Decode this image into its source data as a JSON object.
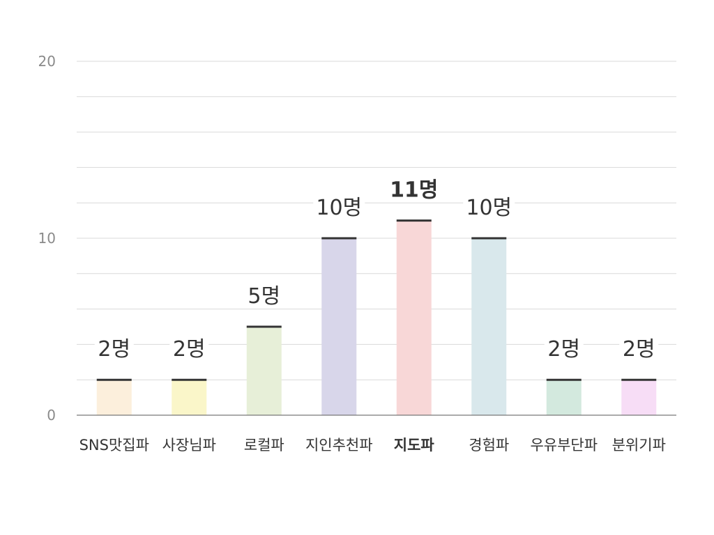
{
  "chart_data": {
    "type": "bar",
    "categories": [
      "SNS맛집파",
      "사장님파",
      "로컬파",
      "지인추천파",
      "지도파",
      "경험파",
      "우유부단파",
      "분위기파"
    ],
    "values": [
      2,
      2,
      5,
      10,
      11,
      10,
      2,
      2
    ],
    "value_labels": [
      "2명",
      "2명",
      "5명",
      "10명",
      "11명",
      "10명",
      "2명",
      "2명"
    ],
    "highlight_index": 4,
    "yticks": [
      "0",
      "10",
      "20"
    ],
    "ylim": [
      0,
      20
    ],
    "grid": true,
    "title": "",
    "xlabel": "",
    "ylabel": "",
    "colors": [
      "#fcefdc",
      "#faf6c9",
      "#e7efd8",
      "#d8d6ea",
      "#f8d7d7",
      "#d9e8ec",
      "#d3e9de",
      "#f7ddf6"
    ],
    "cap_color": "#333333",
    "grid_color": "#d9d9d9",
    "axis_color": "#777777"
  }
}
